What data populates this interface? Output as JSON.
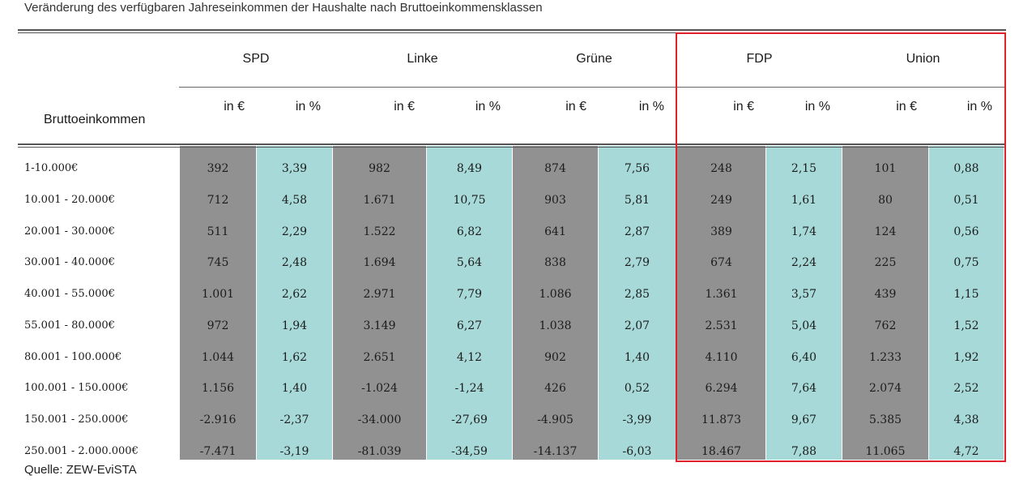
{
  "caption": "Veränderung des verfügbaren Jahreseinkommen der Haushalte nach Bruttoeinkommensklassen",
  "source": "Quelle: ZEW-EviSTA",
  "colors": {
    "grey_band": "#919191",
    "teal_band": "#a6d9d8",
    "highlight": "#e0202a"
  },
  "chart_data": {
    "type": "table",
    "title": "Veränderung des verfügbaren Jahreseinkommen der Haushalte nach Bruttoeinkommensklassen",
    "row_header": "Bruttoeinkommen",
    "parties": [
      {
        "name": "SPD",
        "units": [
          "in €",
          "in %"
        ]
      },
      {
        "name": "Linke",
        "units": [
          "in €",
          "in %"
        ]
      },
      {
        "name": "Grüne",
        "units": [
          "in €",
          "in %"
        ]
      },
      {
        "name": "FDP",
        "units": [
          "in €",
          "in %"
        ]
      },
      {
        "name": "Union",
        "units": [
          "in €",
          "in %"
        ]
      }
    ],
    "highlighted_parties": [
      "FDP",
      "Union"
    ],
    "rows": [
      {
        "label": "1-10.000€",
        "values": [
          "392",
          "3,39",
          "982",
          "8,49",
          "874",
          "7,56",
          "248",
          "2,15",
          "101",
          "0,88"
        ]
      },
      {
        "label": "10.001 - 20.000€",
        "values": [
          "712",
          "4,58",
          "1.671",
          "10,75",
          "903",
          "5,81",
          "249",
          "1,61",
          "80",
          "0,51"
        ]
      },
      {
        "label": "20.001 - 30.000€",
        "values": [
          "511",
          "2,29",
          "1.522",
          "6,82",
          "641",
          "2,87",
          "389",
          "1,74",
          "124",
          "0,56"
        ]
      },
      {
        "label": "30.001 - 40.000€",
        "values": [
          "745",
          "2,48",
          "1.694",
          "5,64",
          "838",
          "2,79",
          "674",
          "2,24",
          "225",
          "0,75"
        ]
      },
      {
        "label": "40.001 - 55.000€",
        "values": [
          "1.001",
          "2,62",
          "2.971",
          "7,79",
          "1.086",
          "2,85",
          "1.361",
          "3,57",
          "439",
          "1,15"
        ]
      },
      {
        "label": "55.001 - 80.000€",
        "values": [
          "972",
          "1,94",
          "3.149",
          "6,27",
          "1.038",
          "2,07",
          "2.531",
          "5,04",
          "762",
          "1,52"
        ]
      },
      {
        "label": "80.001 - 100.000€",
        "values": [
          "1.044",
          "1,62",
          "2.651",
          "4,12",
          "902",
          "1,40",
          "4.110",
          "6,40",
          "1.233",
          "1,92"
        ]
      },
      {
        "label": "100.001 - 150.000€",
        "values": [
          "1.156",
          "1,40",
          "-1.024",
          "-1,24",
          "426",
          "0,52",
          "6.294",
          "7,64",
          "2.074",
          "2,52"
        ]
      },
      {
        "label": "150.001 - 250.000€",
        "values": [
          "-2.916",
          "-2,37",
          "-34.000",
          "-27,69",
          "-4.905",
          "-3,99",
          "11.873",
          "9,67",
          "5.385",
          "4,38"
        ]
      },
      {
        "label": "250.001 - 2.000.000€",
        "values": [
          "-7.471",
          "-3,19",
          "-81.039",
          "-34,59",
          "-14.137",
          "-6,03",
          "18.467",
          "7,88",
          "11.065",
          "4,72"
        ]
      }
    ]
  }
}
